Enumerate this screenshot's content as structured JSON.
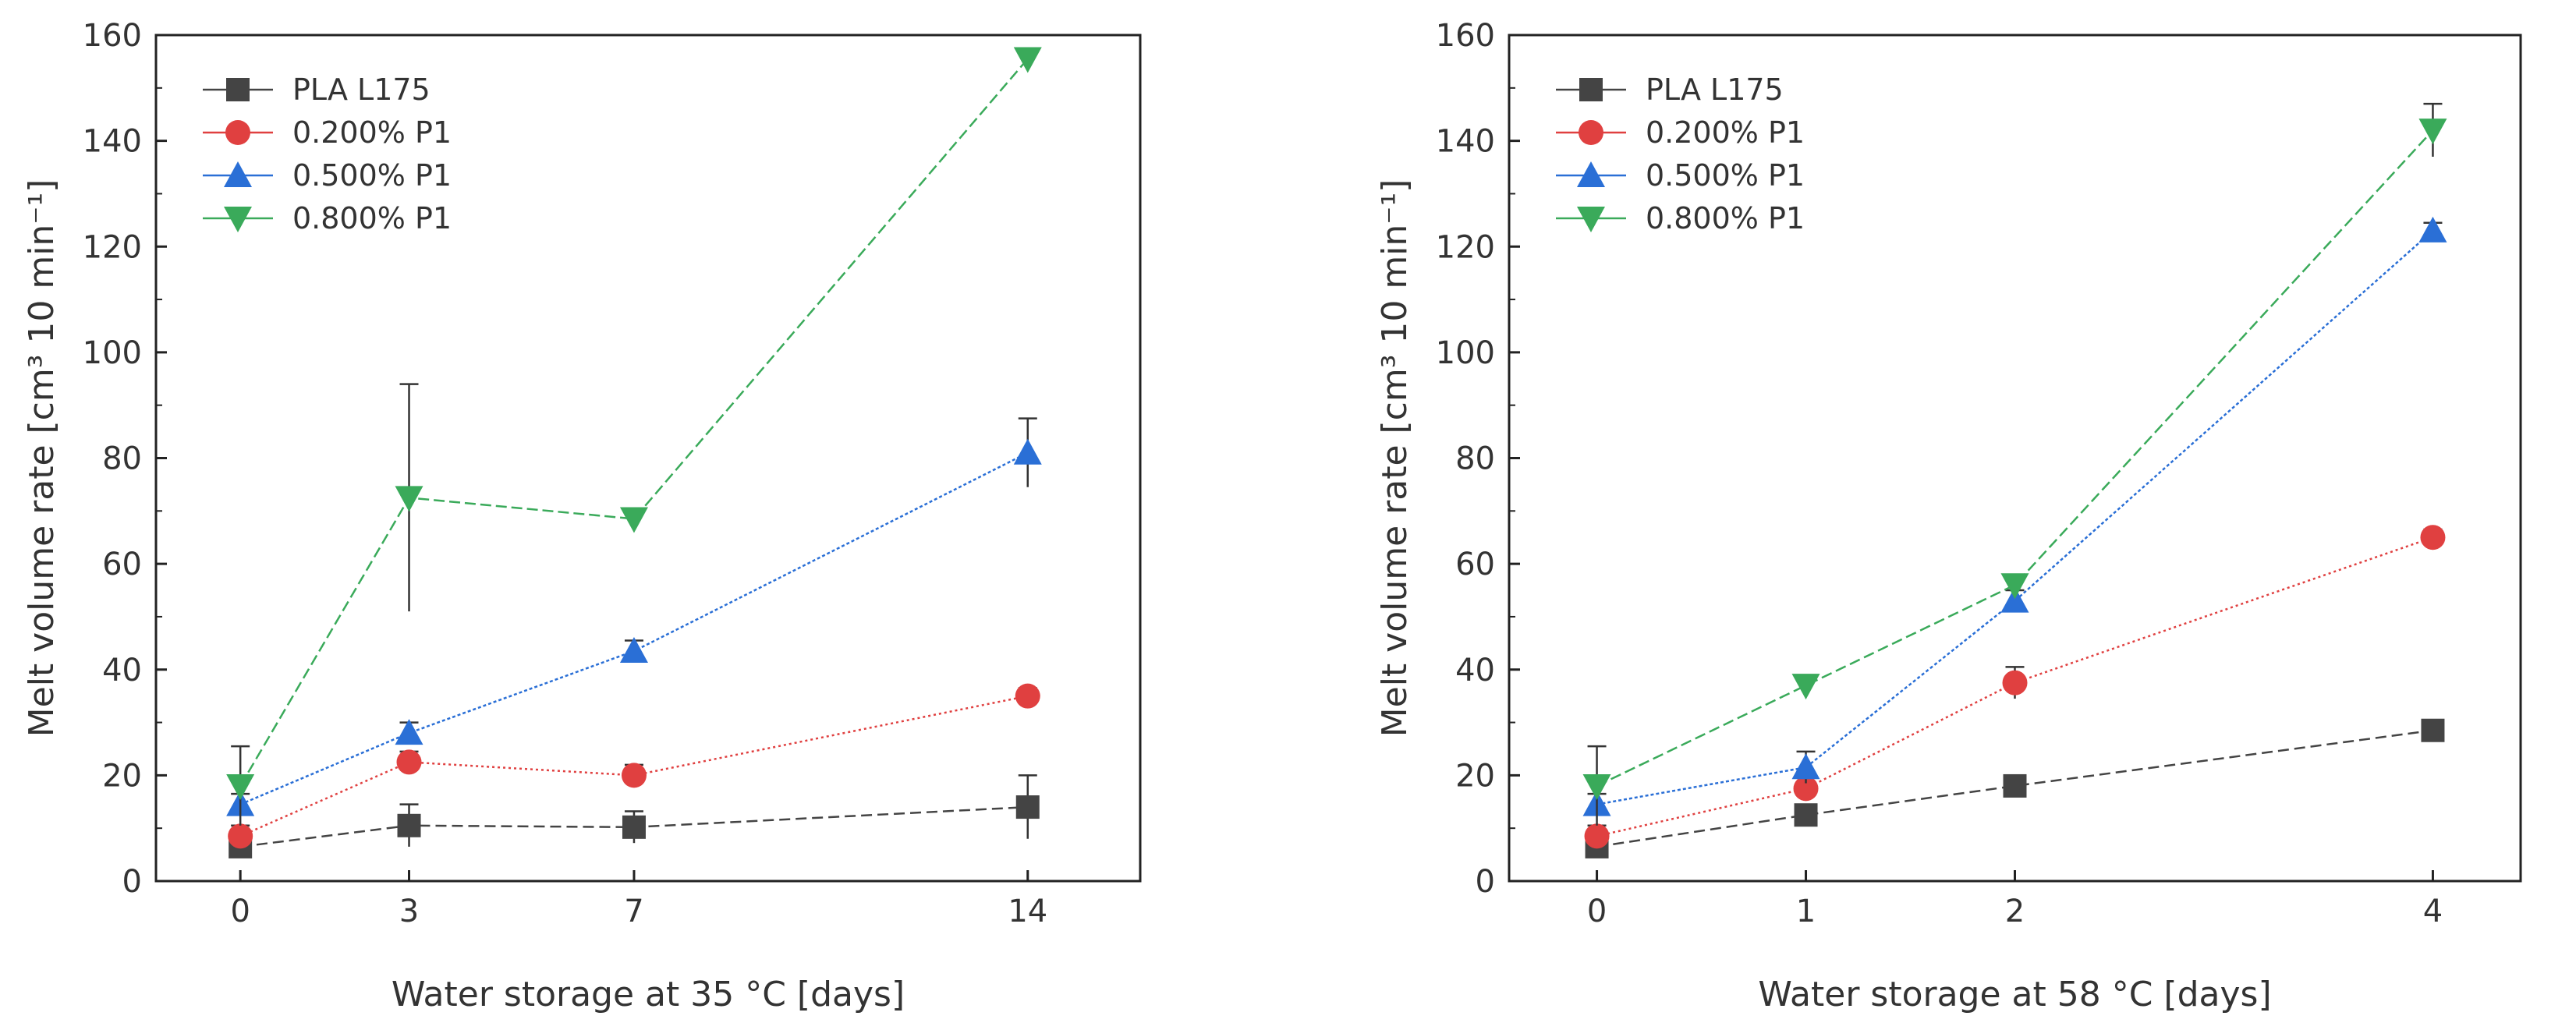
{
  "chart_data": [
    {
      "type": "line",
      "xlabel": "Water storage at 35 °C [days]",
      "ylabel": "Melt volume rate [cm³ 10 min⁻¹]",
      "x": [
        0,
        3,
        7,
        14
      ],
      "x_ticks": [
        "0",
        "3",
        "7",
        "14"
      ],
      "xlim": [
        -1.5,
        16
      ],
      "ylim": [
        0,
        160
      ],
      "y_ticks": [
        "0",
        "20",
        "40",
        "60",
        "80",
        "100",
        "120",
        "140",
        "160"
      ],
      "legend_position": "top-left",
      "series": [
        {
          "name": "PLA L175",
          "marker": "square",
          "color": "#444444",
          "values": [
            6.5,
            10.5,
            10.2,
            14
          ],
          "errors": [
            2,
            4,
            3,
            6
          ]
        },
        {
          "name": "0.200% P1",
          "marker": "circle",
          "color": "#e04040",
          "values": [
            8.5,
            22.5,
            20,
            35
          ],
          "errors": [
            2,
            2,
            2,
            1.5
          ]
        },
        {
          "name": "0.500% P1",
          "marker": "triangle-up",
          "color": "#2a6fd6",
          "values": [
            14.5,
            28,
            43.5,
            81
          ],
          "errors": [
            2,
            2,
            2,
            6.5
          ]
        },
        {
          "name": "0.800% P1",
          "marker": "triangle-down",
          "color": "#3aaa5a",
          "values": [
            18,
            72.5,
            68.5,
            155.5
          ],
          "errors": [
            7.5,
            21.5,
            1.5,
            2
          ]
        }
      ]
    },
    {
      "type": "line",
      "xlabel": "Water storage at 58 °C [days]",
      "ylabel": "Melt volume rate [cm³ 10 min⁻¹]",
      "x": [
        0,
        1,
        2,
        4
      ],
      "x_ticks": [
        "0",
        "1",
        "2",
        "4"
      ],
      "xlim": [
        -0.42,
        4.42
      ],
      "ylim": [
        0,
        160
      ],
      "y_ticks": [
        "0",
        "20",
        "40",
        "60",
        "80",
        "100",
        "120",
        "140",
        "160"
      ],
      "legend_position": "top-left",
      "series": [
        {
          "name": "PLA L175",
          "marker": "square",
          "color": "#444444",
          "values": [
            6.5,
            12.5,
            18,
            28.5
          ],
          "errors": [
            1.5,
            1.5,
            1.5,
            1.5
          ]
        },
        {
          "name": "0.200% P1",
          "marker": "circle",
          "color": "#e04040",
          "values": [
            8.5,
            17.5,
            37.5,
            65
          ],
          "errors": [
            2,
            2,
            3,
            1.5
          ]
        },
        {
          "name": "0.500% P1",
          "marker": "triangle-up",
          "color": "#2a6fd6",
          "values": [
            14.5,
            21.5,
            53,
            123
          ],
          "errors": [
            2,
            3,
            2,
            1.5
          ]
        },
        {
          "name": "0.800% P1",
          "marker": "triangle-down",
          "color": "#3aaa5a",
          "values": [
            18,
            37,
            56,
            142
          ],
          "errors": [
            7.5,
            1.5,
            2,
            5
          ]
        }
      ]
    }
  ]
}
